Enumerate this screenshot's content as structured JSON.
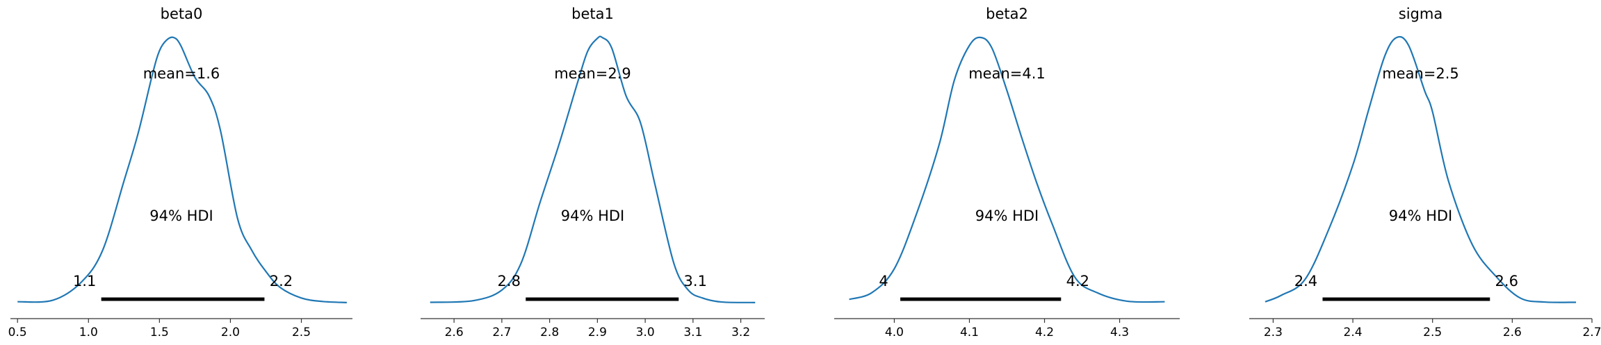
{
  "chart_data": [
    {
      "type": "line",
      "title": "beta0",
      "mean_label": "mean=1.6",
      "hdi_label": "94% HDI",
      "hdi": [
        1.09,
        2.24
      ],
      "hdi_tick_labels": [
        "1.1",
        "2.2"
      ],
      "xlim": [
        0.45,
        2.86
      ],
      "xticks": [
        0.5,
        1.0,
        1.5,
        2.0,
        2.5
      ],
      "xtick_labels": [
        "0.5",
        "1.0",
        "1.5",
        "2.0",
        "2.5"
      ],
      "grid": false,
      "density": {
        "x": [
          0.5,
          0.75,
          0.95,
          1.1,
          1.25,
          1.35,
          1.45,
          1.5,
          1.55,
          1.6,
          1.65,
          1.75,
          1.85,
          1.93,
          2.05,
          2.15,
          2.25,
          2.35,
          2.5,
          2.65,
          2.82
        ],
        "y": [
          0.006,
          0.012,
          0.08,
          0.2,
          0.46,
          0.64,
          0.86,
          0.95,
          0.99,
          1.0,
          0.97,
          0.85,
          0.78,
          0.65,
          0.32,
          0.2,
          0.12,
          0.06,
          0.02,
          0.007,
          0.003
        ]
      }
    },
    {
      "type": "line",
      "title": "beta1",
      "mean_label": "mean=2.9",
      "hdi_label": "94% HDI",
      "hdi": [
        2.75,
        3.07
      ],
      "hdi_tick_labels": [
        "2.8",
        "3.1"
      ],
      "xlim": [
        2.53,
        3.25
      ],
      "xticks": [
        2.6,
        2.7,
        2.8,
        2.9,
        3.0,
        3.1,
        3.2
      ],
      "xtick_labels": [
        "2.6",
        "2.7",
        "2.8",
        "2.9",
        "3.0",
        "3.1",
        "3.2"
      ],
      "grid": false,
      "density": {
        "x": [
          2.55,
          2.64,
          2.7,
          2.74,
          2.78,
          2.82,
          2.86,
          2.88,
          2.9,
          2.91,
          2.93,
          2.96,
          2.99,
          3.02,
          3.06,
          3.09,
          3.12,
          3.16,
          3.23
        ],
        "y": [
          0.004,
          0.01,
          0.05,
          0.15,
          0.38,
          0.6,
          0.84,
          0.95,
          0.997,
          1.0,
          0.96,
          0.78,
          0.68,
          0.45,
          0.15,
          0.05,
          0.02,
          0.005,
          0.003
        ]
      }
    },
    {
      "type": "line",
      "title": "beta2",
      "mean_label": "mean=4.1",
      "hdi_label": "94% HDI",
      "hdi": [
        4.008,
        4.222
      ],
      "hdi_tick_labels": [
        "4",
        "4.2"
      ],
      "xlim": [
        3.92,
        4.38
      ],
      "xticks": [
        4.0,
        4.1,
        4.2,
        4.3
      ],
      "xtick_labels": [
        "4.0",
        "4.1",
        "4.2",
        "4.3"
      ],
      "grid": false,
      "density": {
        "x": [
          3.94,
          3.97,
          4.0,
          4.03,
          4.06,
          4.08,
          4.1,
          4.115,
          4.13,
          4.15,
          4.17,
          4.19,
          4.21,
          4.24,
          4.27,
          4.31,
          4.36
        ],
        "y": [
          0.015,
          0.04,
          0.13,
          0.34,
          0.6,
          0.84,
          0.97,
          1.0,
          0.96,
          0.8,
          0.62,
          0.45,
          0.3,
          0.1,
          0.04,
          0.008,
          0.006
        ]
      }
    },
    {
      "type": "line",
      "title": "sigma",
      "mean_label": "mean=2.5",
      "hdi_label": "94% HDI",
      "hdi": [
        2.362,
        2.572
      ],
      "hdi_tick_labels": [
        "2.4",
        "2.6"
      ],
      "xlim": [
        2.27,
        2.7
      ],
      "xticks": [
        2.3,
        2.4,
        2.5,
        2.6,
        2.7
      ],
      "xtick_labels": [
        "2.3",
        "2.4",
        "2.5",
        "2.6",
        "2.7"
      ],
      "grid": false,
      "density": {
        "x": [
          2.29,
          2.31,
          2.34,
          2.37,
          2.4,
          2.42,
          2.44,
          2.455,
          2.47,
          2.49,
          2.5,
          2.52,
          2.55,
          2.58,
          2.61,
          2.64,
          2.68
        ],
        "y": [
          0.006,
          0.03,
          0.09,
          0.28,
          0.52,
          0.73,
          0.93,
          1.0,
          0.97,
          0.8,
          0.72,
          0.46,
          0.22,
          0.1,
          0.02,
          0.005,
          0.004
        ]
      }
    }
  ]
}
